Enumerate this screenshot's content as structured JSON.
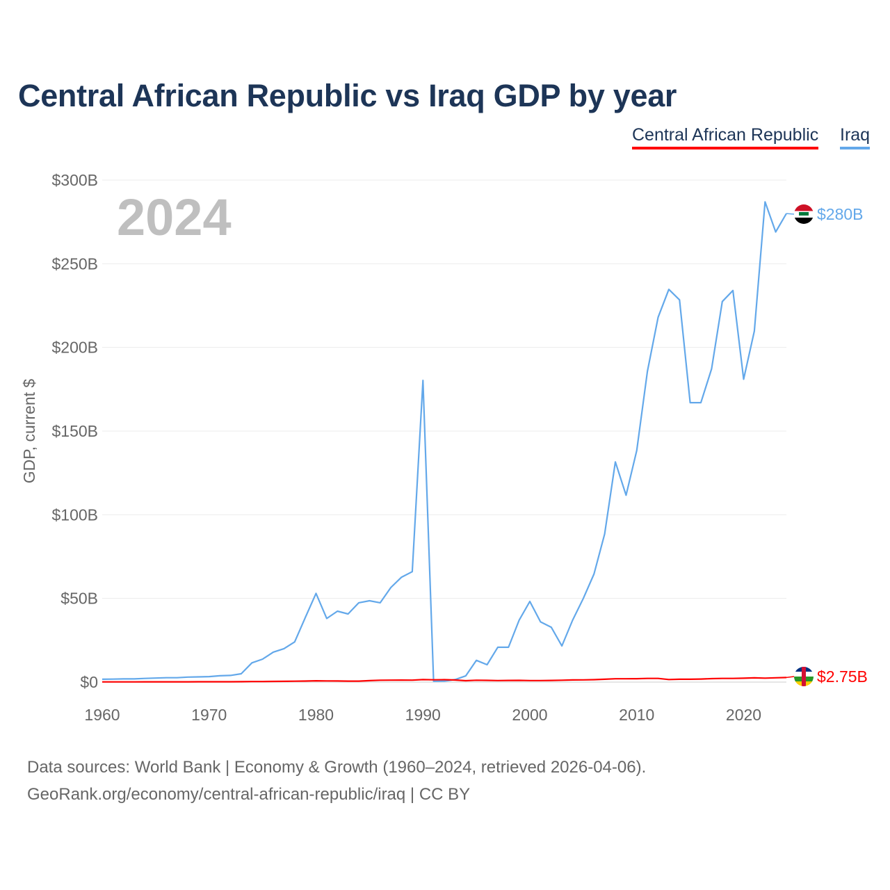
{
  "chart_data": {
    "type": "line",
    "title": "Central African Republic vs Iraq GDP by year",
    "ylabel": "GDP, current $",
    "xlabel": "",
    "year_watermark": "2024",
    "xlim": [
      1960,
      2024
    ],
    "ylim": [
      0,
      300
    ],
    "x_ticks": [
      1960,
      1970,
      1980,
      1990,
      2000,
      2010,
      2020
    ],
    "y_ticks": [
      0,
      50,
      100,
      150,
      200,
      250,
      300
    ],
    "y_tick_labels": [
      "$0",
      "$50B",
      "$100B",
      "$150B",
      "$200B",
      "$250B",
      "$300B"
    ],
    "grid": true,
    "legend_position": "top-right",
    "x": [
      1960,
      1961,
      1962,
      1963,
      1964,
      1965,
      1966,
      1967,
      1968,
      1969,
      1970,
      1971,
      1972,
      1973,
      1974,
      1975,
      1976,
      1977,
      1978,
      1979,
      1980,
      1981,
      1982,
      1983,
      1984,
      1985,
      1986,
      1987,
      1988,
      1989,
      1990,
      1991,
      1992,
      1993,
      1994,
      1995,
      1996,
      1997,
      1998,
      1999,
      2000,
      2001,
      2002,
      2003,
      2004,
      2005,
      2006,
      2007,
      2008,
      2009,
      2010,
      2011,
      2012,
      2013,
      2014,
      2015,
      2016,
      2017,
      2018,
      2019,
      2020,
      2021,
      2022,
      2023,
      2024
    ],
    "series": [
      {
        "name": "Central African Republic",
        "color": "#ff0000",
        "end_label": "$2.75B",
        "values": [
          0.11,
          0.12,
          0.13,
          0.14,
          0.15,
          0.16,
          0.17,
          0.18,
          0.18,
          0.19,
          0.19,
          0.21,
          0.22,
          0.27,
          0.33,
          0.34,
          0.41,
          0.46,
          0.54,
          0.61,
          0.8,
          0.7,
          0.66,
          0.59,
          0.58,
          0.87,
          1.12,
          1.17,
          1.21,
          1.18,
          1.49,
          1.38,
          1.44,
          1.26,
          0.84,
          1.12,
          1.03,
          0.93,
          1.01,
          1.03,
          0.91,
          0.93,
          0.99,
          1.14,
          1.27,
          1.35,
          1.46,
          1.7,
          1.98,
          1.98,
          2.03,
          2.21,
          2.2,
          1.52,
          1.7,
          1.7,
          1.82,
          2.07,
          2.22,
          2.22,
          2.33,
          2.52,
          2.38,
          2.56,
          2.75
        ]
      },
      {
        "name": "Iraq",
        "color": "#63a8ea",
        "end_label": "$280B",
        "values": [
          1.7,
          1.8,
          1.9,
          1.9,
          2.2,
          2.4,
          2.6,
          2.6,
          3.0,
          3.1,
          3.3,
          3.8,
          4.0,
          5.0,
          11.5,
          13.7,
          17.9,
          20.0,
          24.0,
          38.6,
          53.0,
          38.0,
          42.4,
          40.7,
          47.4,
          48.6,
          47.4,
          56.5,
          62.7,
          66.0,
          180.3,
          0.5,
          0.6,
          1.5,
          3.7,
          13.0,
          10.4,
          20.8,
          20.8,
          37.0,
          48.2,
          36.0,
          32.8,
          21.6,
          37.0,
          50.0,
          64.6,
          88.5,
          131.6,
          111.7,
          138.5,
          185.7,
          218.0,
          234.7,
          228.4,
          167.0,
          167.0,
          187.2,
          227.4,
          234.0,
          181.0,
          209.8,
          287.0,
          269.0,
          280.0
        ]
      }
    ]
  },
  "legend": [
    "Central African Republic",
    "Iraq"
  ],
  "footer": {
    "line1": "Data sources: World Bank | Economy & Growth (1960–2024, retrieved 2026-04-06).",
    "line2": "GeoRank.org/economy/central-african-republic/iraq | CC BY"
  }
}
